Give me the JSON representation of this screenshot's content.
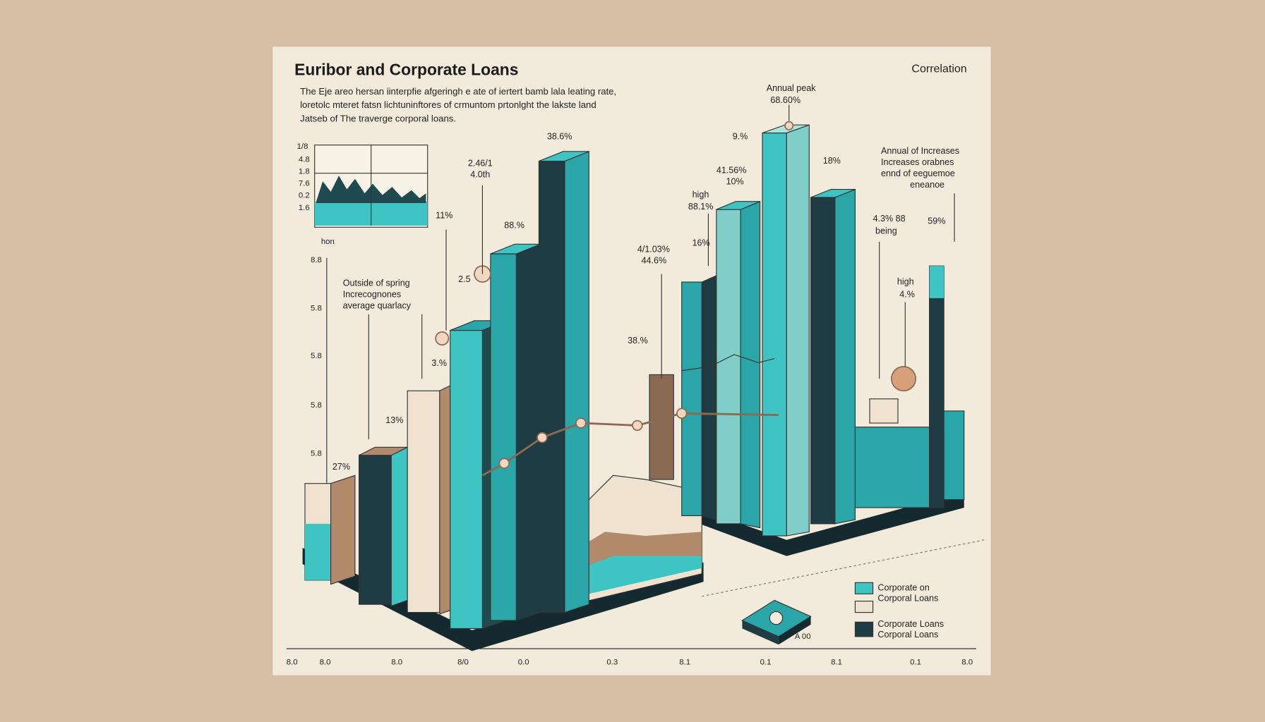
{
  "header": {
    "title": "Euribor and Corporate Loans",
    "tag": "Correlation",
    "description": [
      "The Eje areo hersan iinterpfie afgeringh e ate of iertert bamb lala leating rate,",
      "loretolc mteret fatsn lichtuninftores of crmuntom prtonlght the lakste land",
      "Jatseb of The traverge corporal loans."
    ]
  },
  "inset": {
    "axis_labels": [
      "1/8",
      "4.8",
      "1.8",
      "7.6",
      "0.2",
      "1.6"
    ],
    "caption": "hon"
  },
  "y_axis_labels": [
    "8.8",
    "5.8",
    "5.8",
    "5.8",
    "5.8"
  ],
  "x_axis_labels": [
    "8.0",
    "8.0",
    "8.0",
    "8/0",
    "0.0",
    "0.3",
    "8.1",
    "0.1",
    "8.1",
    "0.1",
    "8.0"
  ],
  "annotations": {
    "peak_left": "38.6%",
    "left_a": [
      "2.46/1",
      "4.0th"
    ],
    "left_b": "11%",
    "left_c": "88.%",
    "left_d": "2.5",
    "left_e": "3.%",
    "left_f": "13%",
    "left_g": "27%",
    "outside": [
      "Outside of spring",
      "Increcognones",
      "average quarlacy"
    ],
    "annual_peak": [
      "Annual peak",
      "68.60%"
    ],
    "right_a": "9.%",
    "right_b": [
      "41.56%",
      "10%"
    ],
    "right_c": "18%",
    "right_d": [
      "high",
      "88.1%"
    ],
    "right_e": "16%",
    "right_f": [
      "4/1.03%",
      "44.6%"
    ],
    "right_g": "38.%",
    "annual_increase": [
      "Annual of Increases",
      "Increases orabnes",
      "ennd of eeguemoe",
      "eneanoe"
    ],
    "right_h": [
      "4.3% 88",
      "being"
    ],
    "right_i": "59%",
    "right_j": [
      "high",
      "4.%"
    ],
    "stack": "A 00"
  },
  "legend": [
    {
      "lines": [
        "Corporate on",
        "Corporal Loans"
      ],
      "color": "#3fc4c4"
    },
    {
      "lines": [
        "Corporate Loans",
        "Corporal Loans"
      ],
      "color": "#1f3b44"
    }
  ],
  "legend_beige": "#efe3cf"
}
